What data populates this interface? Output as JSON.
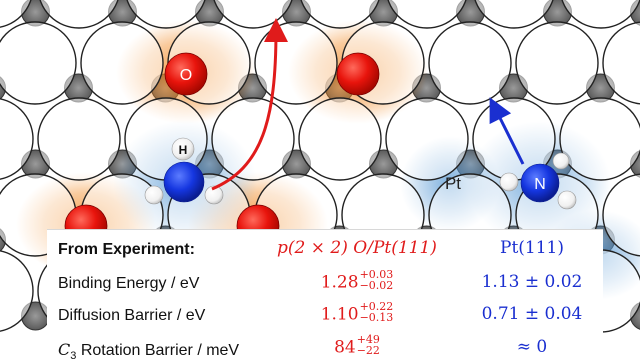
{
  "diagram": {
    "atom_labels": {
      "oxygen": "O",
      "hydrogen": "H",
      "nitrogen": "N",
      "surface": "Pt"
    }
  },
  "table": {
    "header": {
      "label": "From Experiment:",
      "col_oxygen": "p(2 × 2) O/Pt(111)",
      "col_clean": "Pt(111)"
    },
    "rows": [
      {
        "label": "Binding Energy / eV",
        "oxygen_value": "1.28",
        "oxygen_plus": "+0.03",
        "oxygen_minus": "−0.02",
        "clean_value": "1.13 ± 0.02"
      },
      {
        "label": "Diffusion Barrier / eV",
        "oxygen_value": "1.10",
        "oxygen_plus": "+0.22",
        "oxygen_minus": "−0.13",
        "clean_value": "0.71 ± 0.04"
      },
      {
        "label_symbol": "C",
        "label_subscript": "3",
        "label_rest": " Rotation Barrier / meV",
        "oxygen_value": "84",
        "oxygen_plus": "+49",
        "oxygen_minus": "−22",
        "clean_value": "≈ 0"
      }
    ]
  },
  "colors": {
    "oxygen": "#e8140c",
    "nitrogen": "#1536e0",
    "orange_glow": "#f28c28",
    "blue_glow": "#5b9bd5",
    "arrow_red": "#e01b1b",
    "arrow_blue": "#1a2fd0",
    "text_red": "#e01b1b",
    "text_blue": "#1a2fd0"
  }
}
